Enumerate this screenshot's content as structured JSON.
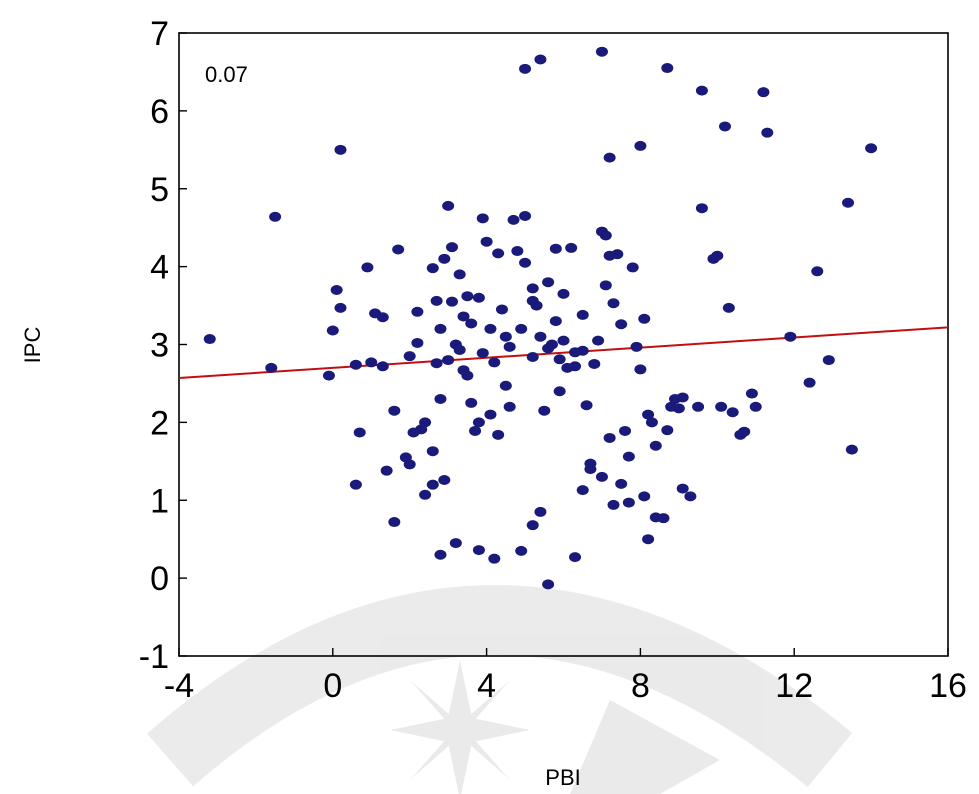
{
  "chart_data": {
    "type": "scatter",
    "title": "",
    "xlabel": "PBI",
    "ylabel": "IPC",
    "xlim": [
      -4,
      16
    ],
    "ylim": [
      -1,
      7
    ],
    "xticks": [
      -4,
      0,
      4,
      8,
      12,
      16
    ],
    "yticks": [
      -1,
      0,
      1,
      2,
      3,
      4,
      5,
      6,
      7
    ],
    "grid": false,
    "annotation": "0.07",
    "colors": {
      "points": "#1a1a7a",
      "fit_line": "#c01010",
      "frame": "#000000"
    },
    "fit_line": {
      "x": [
        -4,
        16
      ],
      "y": [
        2.57,
        3.22
      ]
    },
    "points": [
      [
        -3.2,
        3.07
      ],
      [
        -1.5,
        4.64
      ],
      [
        -1.6,
        2.7
      ],
      [
        0.2,
        5.5
      ],
      [
        -0.1,
        2.6
      ],
      [
        0.0,
        3.18
      ],
      [
        0.1,
        3.7
      ],
      [
        0.2,
        3.47
      ],
      [
        0.6,
        2.74
      ],
      [
        0.9,
        3.99
      ],
      [
        1.0,
        2.77
      ],
      [
        1.3,
        2.72
      ],
      [
        1.1,
        3.4
      ],
      [
        1.3,
        3.35
      ],
      [
        1.6,
        2.15
      ],
      [
        1.7,
        4.22
      ],
      [
        1.9,
        1.55
      ],
      [
        2.0,
        1.46
      ],
      [
        2.0,
        2.85
      ],
      [
        2.2,
        3.02
      ],
      [
        2.3,
        1.91
      ],
      [
        2.1,
        1.87
      ],
      [
        2.4,
        1.07
      ],
      [
        2.6,
        1.63
      ],
      [
        2.6,
        1.2
      ],
      [
        2.7,
        2.76
      ],
      [
        2.7,
        3.56
      ],
      [
        2.8,
        3.2
      ],
      [
        2.6,
        3.98
      ],
      [
        2.9,
        4.1
      ],
      [
        2.8,
        2.3
      ],
      [
        2.9,
        1.26
      ],
      [
        3.0,
        4.78
      ],
      [
        3.1,
        3.55
      ],
      [
        3.2,
        3.0
      ],
      [
        3.3,
        2.93
      ],
      [
        3.1,
        4.25
      ],
      [
        3.3,
        3.9
      ],
      [
        3.4,
        2.67
      ],
      [
        3.5,
        3.62
      ],
      [
        3.6,
        3.27
      ],
      [
        3.6,
        2.25
      ],
      [
        3.5,
        2.6
      ],
      [
        3.7,
        1.89
      ],
      [
        3.8,
        3.6
      ],
      [
        3.8,
        2.0
      ],
      [
        3.9,
        4.62
      ],
      [
        4.0,
        4.32
      ],
      [
        3.9,
        2.89
      ],
      [
        4.1,
        2.1
      ],
      [
        4.1,
        3.2
      ],
      [
        4.3,
        4.17
      ],
      [
        4.2,
        2.77
      ],
      [
        4.3,
        1.84
      ],
      [
        4.5,
        3.1
      ],
      [
        4.5,
        2.47
      ],
      [
        4.6,
        2.2
      ],
      [
        4.7,
        4.6
      ],
      [
        4.8,
        4.2
      ],
      [
        4.9,
        3.2
      ],
      [
        5.0,
        4.65
      ],
      [
        5.0,
        4.05
      ],
      [
        5.2,
        3.72
      ],
      [
        5.3,
        3.5
      ],
      [
        5.2,
        2.84
      ],
      [
        5.4,
        3.1
      ],
      [
        5.5,
        2.15
      ],
      [
        5.6,
        3.8
      ],
      [
        5.7,
        3.0
      ],
      [
        5.6,
        2.95
      ],
      [
        5.8,
        4.23
      ],
      [
        5.8,
        3.3
      ],
      [
        5.9,
        2.4
      ],
      [
        6.0,
        3.05
      ],
      [
        6.1,
        2.7
      ],
      [
        6.2,
        4.24
      ],
      [
        6.3,
        2.9
      ],
      [
        6.3,
        2.72
      ],
      [
        6.5,
        3.38
      ],
      [
        6.6,
        2.22
      ],
      [
        6.7,
        1.4
      ],
      [
        6.9,
        3.05
      ],
      [
        7.0,
        4.45
      ],
      [
        7.1,
        4.4
      ],
      [
        7.1,
        3.76
      ],
      [
        7.2,
        4.14
      ],
      [
        7.3,
        3.53
      ],
      [
        7.4,
        4.16
      ],
      [
        7.5,
        3.26
      ],
      [
        7.6,
        1.89
      ],
      [
        7.7,
        1.56
      ],
      [
        7.8,
        3.99
      ],
      [
        7.9,
        2.97
      ],
      [
        8.0,
        2.68
      ],
      [
        8.1,
        3.33
      ],
      [
        8.2,
        2.1
      ],
      [
        8.3,
        2.0
      ],
      [
        8.4,
        1.7
      ],
      [
        8.4,
        0.78
      ],
      [
        8.7,
        1.9
      ],
      [
        8.8,
        2.2
      ],
      [
        8.9,
        2.3
      ],
      [
        9.0,
        2.18
      ],
      [
        9.1,
        2.32
      ],
      [
        9.3,
        1.05
      ],
      [
        9.5,
        2.2
      ],
      [
        9.6,
        4.75
      ],
      [
        9.9,
        4.1
      ],
      [
        10.0,
        4.14
      ],
      [
        10.1,
        2.2
      ],
      [
        10.3,
        3.47
      ],
      [
        10.4,
        2.13
      ],
      [
        10.6,
        1.84
      ],
      [
        10.7,
        1.88
      ],
      [
        10.9,
        2.37
      ],
      [
        11.0,
        2.2
      ],
      [
        11.2,
        6.24
      ],
      [
        11.3,
        5.72
      ],
      [
        11.9,
        3.1
      ],
      [
        12.4,
        2.51
      ],
      [
        12.6,
        3.94
      ],
      [
        12.9,
        2.8
      ],
      [
        13.4,
        4.82
      ],
      [
        13.5,
        1.65
      ],
      [
        14.0,
        5.52
      ],
      [
        10.2,
        5.8
      ],
      [
        9.6,
        6.26
      ],
      [
        8.7,
        6.55
      ],
      [
        7.0,
        6.76
      ],
      [
        5.4,
        6.66
      ],
      [
        5.0,
        6.54
      ],
      [
        8.0,
        5.55
      ],
      [
        7.2,
        5.4
      ],
      [
        0.7,
        1.87
      ],
      [
        0.6,
        1.2
      ],
      [
        1.4,
        1.38
      ],
      [
        1.6,
        0.72
      ],
      [
        2.8,
        0.3
      ],
      [
        3.2,
        0.45
      ],
      [
        3.8,
        0.36
      ],
      [
        4.2,
        0.25
      ],
      [
        4.9,
        0.35
      ],
      [
        5.2,
        0.68
      ],
      [
        5.4,
        0.85
      ],
      [
        5.6,
        -0.08
      ],
      [
        6.3,
        0.27
      ],
      [
        6.5,
        1.13
      ],
      [
        6.7,
        1.47
      ],
      [
        7.0,
        1.3
      ],
      [
        7.2,
        1.8
      ],
      [
        7.3,
        0.94
      ],
      [
        7.5,
        1.21
      ],
      [
        7.7,
        0.97
      ],
      [
        8.1,
        1.05
      ],
      [
        8.2,
        0.5
      ],
      [
        8.6,
        0.77
      ],
      [
        9.1,
        1.15
      ],
      [
        6.5,
        2.92
      ],
      [
        5.9,
        2.81
      ],
      [
        4.6,
        2.97
      ],
      [
        3.0,
        2.8
      ],
      [
        2.4,
        2.0
      ],
      [
        5.2,
        3.56
      ],
      [
        6.8,
        2.75
      ],
      [
        4.4,
        3.45
      ],
      [
        3.4,
        3.36
      ],
      [
        2.2,
        3.42
      ],
      [
        6.0,
        3.65
      ]
    ]
  }
}
